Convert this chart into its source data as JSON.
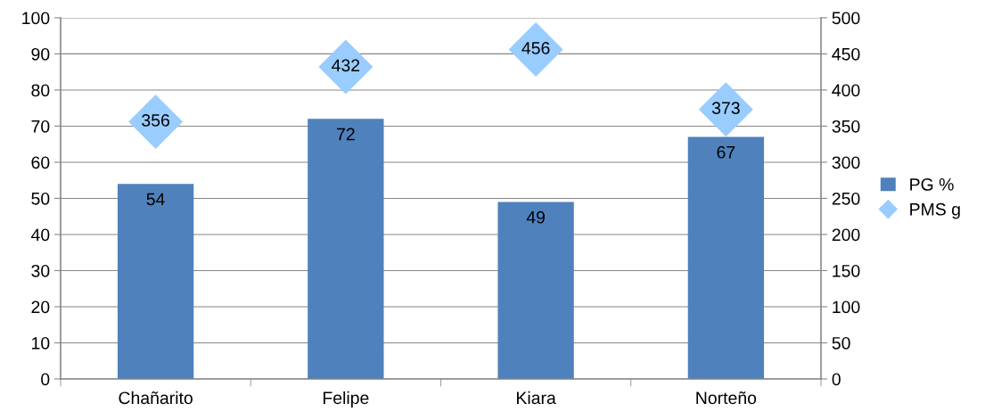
{
  "chart_data": {
    "type": "bar",
    "categories": [
      "Chañarito",
      "Felipe",
      "Kiara",
      "Norteño"
    ],
    "series": [
      {
        "name": "PG %",
        "color": "#4f81bd",
        "values": [
          54,
          72,
          49,
          67
        ]
      },
      {
        "name": "PMS g",
        "type": "scatter",
        "axis": "y2",
        "color": "#99ccff",
        "marker": "diamond",
        "values": [
          356,
          432,
          456,
          373
        ]
      }
    ],
    "ylim": [
      0,
      100
    ],
    "yticks": [
      0,
      10,
      20,
      30,
      40,
      50,
      60,
      70,
      80,
      90,
      100
    ],
    "y2lim": [
      0,
      500
    ],
    "y2ticks": [
      0,
      50,
      100,
      150,
      200,
      250,
      300,
      350,
      400,
      450,
      500
    ],
    "grid": "y",
    "legend": "right",
    "data_labels": true
  }
}
